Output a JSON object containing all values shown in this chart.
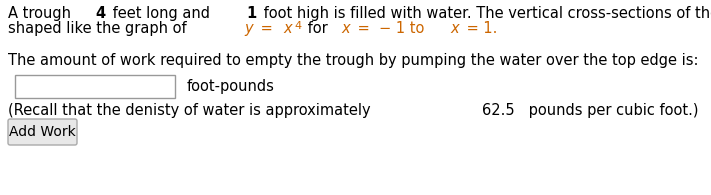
{
  "bg_color": "#ffffff",
  "black": "#000000",
  "orange": "#cc6600",
  "gray_border": "#aaaaaa",
  "button_bg": "#e8e8e8",
  "input_border": "#999999",
  "font_size": 10.5,
  "font_size_sup": 8,
  "font_size_btn": 10,
  "line1_parts": [
    {
      "text": "A trough ",
      "color": "#000000",
      "bold": false,
      "italic": false
    },
    {
      "text": "4",
      "color": "#000000",
      "bold": true,
      "italic": false
    },
    {
      "text": " feet long and ",
      "color": "#000000",
      "bold": false,
      "italic": false
    },
    {
      "text": "1",
      "color": "#000000",
      "bold": true,
      "italic": false
    },
    {
      "text": " foot high is filled with water. The vertical cross-sections of the trough parallel to the ends are",
      "color": "#000000",
      "bold": false,
      "italic": false
    }
  ],
  "line2_parts": [
    {
      "text": "shaped like the graph of ",
      "color": "#000000",
      "bold": false,
      "italic": false,
      "sup": false
    },
    {
      "text": "y",
      "color": "#cc6600",
      "bold": false,
      "italic": true,
      "sup": false
    },
    {
      "text": " = ",
      "color": "#cc6600",
      "bold": false,
      "italic": false,
      "sup": false
    },
    {
      "text": "x",
      "color": "#cc6600",
      "bold": false,
      "italic": true,
      "sup": false
    },
    {
      "text": "4",
      "color": "#cc6600",
      "bold": false,
      "italic": false,
      "sup": true
    },
    {
      "text": " for ",
      "color": "#000000",
      "bold": false,
      "italic": false,
      "sup": false
    },
    {
      "text": "x",
      "color": "#cc6600",
      "bold": false,
      "italic": true,
      "sup": false
    },
    {
      "text": " =  − 1 to ",
      "color": "#cc6600",
      "bold": false,
      "italic": false,
      "sup": false
    },
    {
      "text": "x",
      "color": "#cc6600",
      "bold": false,
      "italic": true,
      "sup": false
    },
    {
      "text": " = 1.",
      "color": "#cc6600",
      "bold": false,
      "italic": false,
      "sup": false
    }
  ],
  "line3_parts": [
    {
      "text": "The amount of work required to empty the trough by pumping the water over the top edge is:",
      "color": "#000000",
      "bold": false,
      "italic": false,
      "sup": false
    }
  ],
  "foot_pounds": "foot-pounds",
  "recall_parts": [
    {
      "text": "(Recall that the denisty of water is approximately ",
      "color": "#000000",
      "bold": false,
      "italic": false,
      "sup": false
    },
    {
      "text": "62.5",
      "color": "#000000",
      "bold": false,
      "italic": false,
      "sup": false
    },
    {
      "text": " pounds per cubic foot.)",
      "color": "#000000",
      "bold": false,
      "italic": false,
      "sup": false
    }
  ],
  "button_text": "Add Work"
}
